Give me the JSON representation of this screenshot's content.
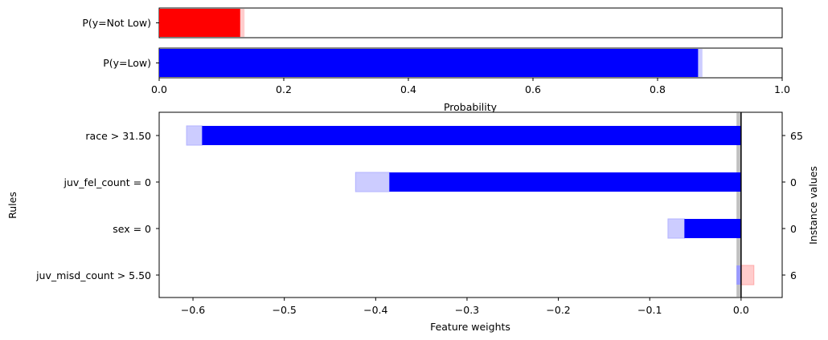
{
  "chart_data": [
    {
      "type": "bar",
      "orientation": "horizontal",
      "categories": [
        "P(y=Not Low)",
        "P(y=Low)"
      ],
      "series": [
        {
          "values": [
            0.13,
            0.865
          ],
          "colors": [
            "#ff0000",
            "#0000ff"
          ]
        },
        {
          "values": [
            0.137,
            0.872
          ],
          "colors": [
            "#ffcccc",
            "#ccccff"
          ]
        }
      ],
      "xlabel": "Probability",
      "xlim": [
        0,
        1
      ],
      "xticks": [
        "0.0",
        "0.2",
        "0.4",
        "0.6",
        "0.8",
        "1.0"
      ]
    },
    {
      "type": "bar",
      "orientation": "horizontal",
      "categories": [
        "race > 31.50",
        "juv_fel_count = 0",
        "sex = 0",
        "juv_misd_count > 5.50"
      ],
      "values": [
        -0.59,
        -0.385,
        -0.062,
        -0.005
      ],
      "interval_low": [
        -0.607,
        -0.422,
        -0.08,
        -0.005
      ],
      "interval_high": [
        0,
        0,
        0,
        0.014
      ],
      "instance_values": [
        "65",
        "0",
        "0",
        "6"
      ],
      "xlabel": "Feature weights",
      "ylabel": "Rules",
      "y2label": "Instance values",
      "xlim": [
        -0.637,
        0.045
      ],
      "xticks": [
        "−0.6",
        "−0.5",
        "−0.4",
        "−0.3",
        "−0.2",
        "−0.1",
        "0.0"
      ],
      "xtick_values": [
        -0.6,
        -0.5,
        -0.4,
        -0.3,
        -0.2,
        -0.1,
        0.0
      ],
      "colors": {
        "bar": "#0000ff",
        "interval_neg": "#ccccff",
        "interval_pos": "#ffcccc",
        "zero_band": "#c0c0c0"
      }
    }
  ]
}
